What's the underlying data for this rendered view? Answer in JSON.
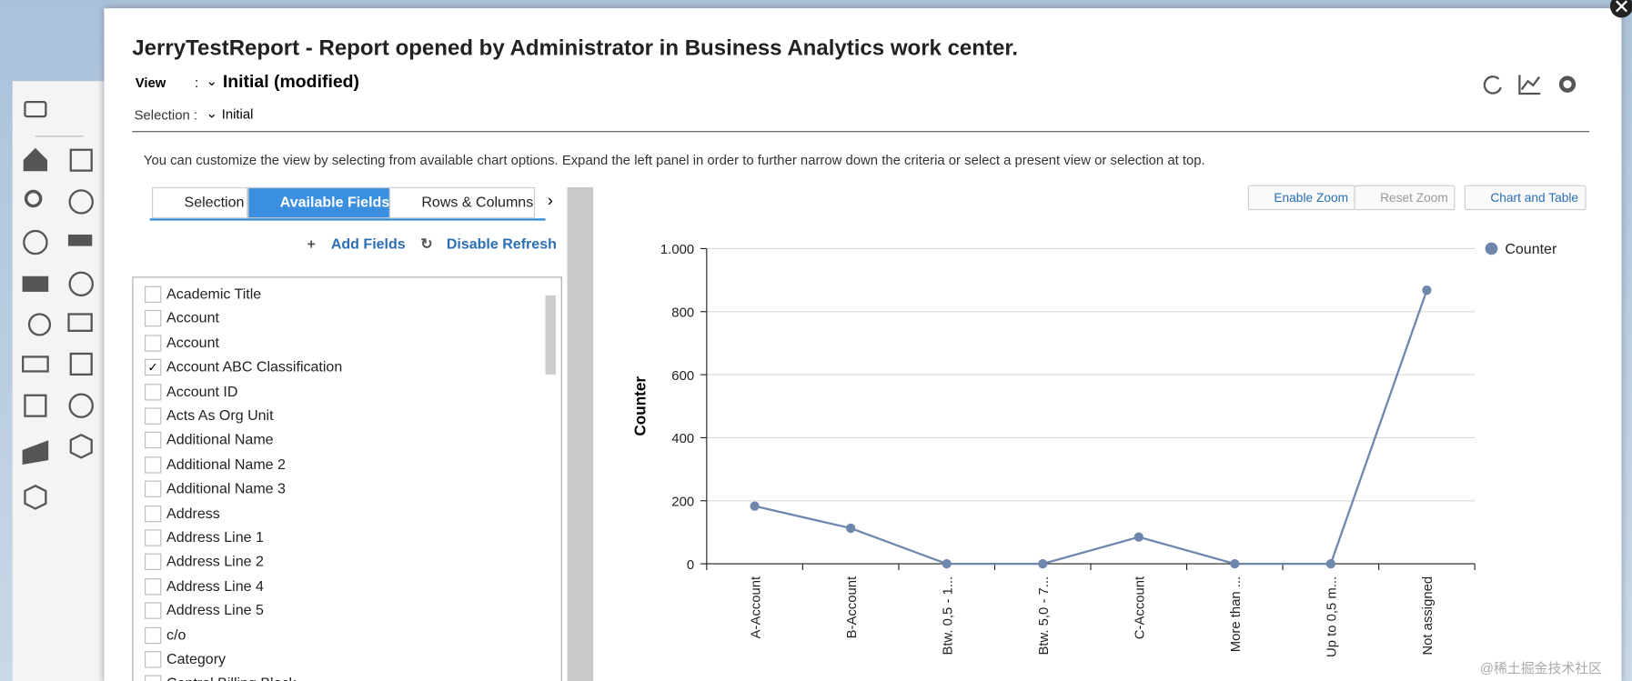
{
  "header": {
    "title": "JerryTestReport - Report opened by Administrator in Business Analytics work center.",
    "view_label": "View",
    "view_colon": ":",
    "view_value": "Initial (modified)",
    "selection_label": "Selection :",
    "selection_value": "Initial"
  },
  "info": "You can customize the view by selecting from available chart options. Expand the left panel in order to further narrow down the criteria or select a present view or selection at top.",
  "tabs": [
    "Selection",
    "Available Fields",
    "Rows & Columns"
  ],
  "actions": [
    "Add Fields",
    "Disable Refresh"
  ],
  "toolbar": [
    "Enable Zoom",
    "Reset Zoom",
    "Chart and Table"
  ],
  "fields": [
    {
      "label": "Academic Title",
      "checked": false
    },
    {
      "label": "Account",
      "checked": false
    },
    {
      "label": "Account",
      "checked": false
    },
    {
      "label": "Account ABC Classification",
      "checked": true
    },
    {
      "label": "Account ID",
      "checked": false
    },
    {
      "label": "Acts As Org Unit",
      "checked": false
    },
    {
      "label": "Additional Name",
      "checked": false
    },
    {
      "label": "Additional Name 2",
      "checked": false
    },
    {
      "label": "Additional Name 3",
      "checked": false
    },
    {
      "label": "Address",
      "checked": false
    },
    {
      "label": "Address Line 1",
      "checked": false
    },
    {
      "label": "Address Line 2",
      "checked": false
    },
    {
      "label": "Address Line 4",
      "checked": false
    },
    {
      "label": "Address Line 5",
      "checked": false
    },
    {
      "label": "c/o",
      "checked": false
    },
    {
      "label": "Category",
      "checked": false
    },
    {
      "label": "Central Billing Block",
      "checked": false
    }
  ],
  "watermark": "@稀土掘金技术社区",
  "chart_data": {
    "type": "line",
    "y_label": "Counter",
    "categories": [
      "A-Account",
      "B-Account",
      "Btw. 0,5 - 1...",
      "Btw. 5,0 - 7...",
      "C-Account",
      "More than ...",
      "Up to 0,5 m...",
      "Not assigned"
    ],
    "series": [
      {
        "name": "Counter",
        "color": "#6f86ad",
        "values": [
          183,
          113,
          0,
          0,
          85,
          0,
          0,
          868
        ]
      }
    ],
    "ylim": [
      0,
      1000
    ],
    "yticks": [
      0,
      200,
      400,
      600,
      800,
      {
        "value": 1000,
        "label": "1.000"
      }
    ],
    "grid": true,
    "legend": "right"
  }
}
